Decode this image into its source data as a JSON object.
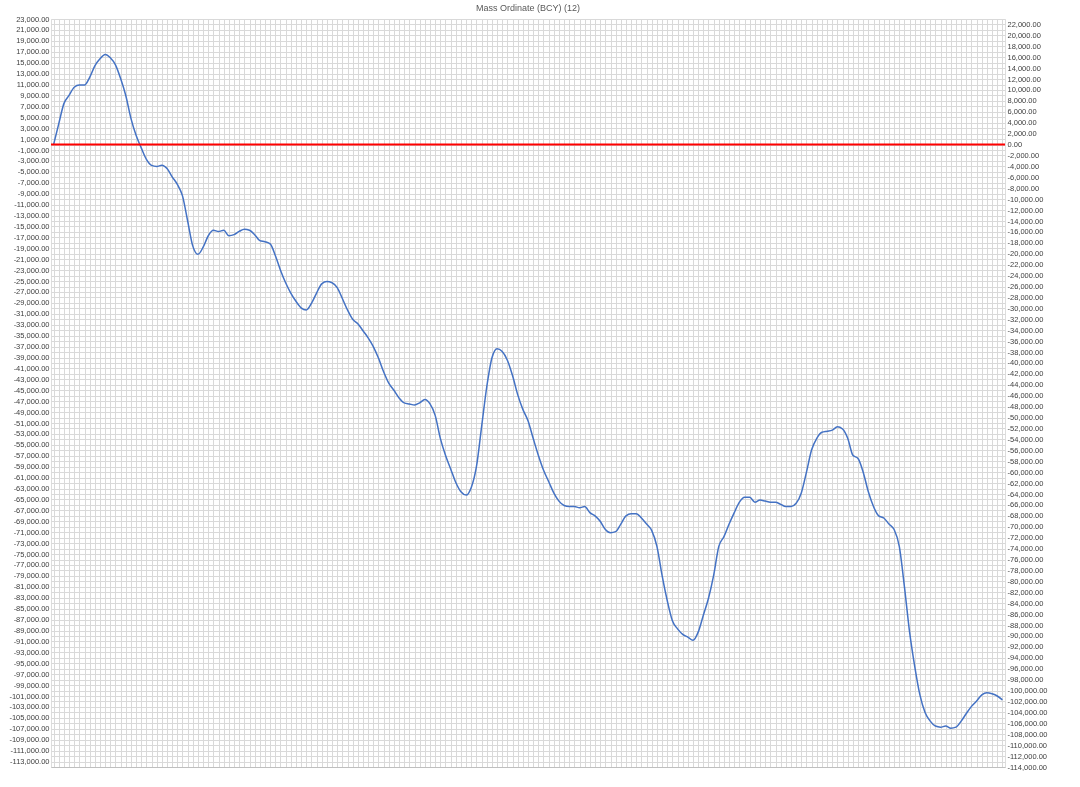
{
  "chart_data": {
    "type": "line",
    "title": "Mass Ordinate (BCY)  (12)",
    "categories": [
      null,
      null,
      null,
      null,
      null,
      null,
      null,
      null,
      null,
      null,
      null,
      null,
      null,
      null,
      null,
      null,
      null,
      null,
      null,
      null,
      null,
      null,
      null,
      null,
      null,
      null,
      null,
      null,
      null,
      null,
      null,
      null,
      null,
      null,
      null,
      null,
      null,
      null,
      null,
      null,
      null,
      null,
      null,
      null,
      null,
      null,
      null,
      null,
      null,
      null,
      null,
      null,
      null,
      null,
      null,
      null,
      null,
      null,
      null,
      null,
      null,
      null,
      null,
      null,
      null,
      null,
      null,
      null,
      null,
      null,
      null,
      null,
      null,
      null,
      null,
      null,
      null,
      null,
      null,
      null,
      null,
      null,
      null,
      null,
      null,
      null,
      null,
      null,
      null,
      null,
      null,
      null,
      null,
      null,
      null,
      null,
      null,
      null,
      null,
      null,
      null,
      null,
      null,
      null,
      null,
      null,
      null,
      null,
      null,
      null,
      null,
      null,
      null,
      null,
      null,
      null,
      null,
      null,
      null,
      null,
      null,
      null,
      null,
      null,
      null,
      null,
      null,
      null,
      null,
      null,
      null,
      null,
      null,
      null,
      null,
      null,
      null,
      null,
      null,
      null,
      null,
      null,
      null,
      null,
      null,
      null,
      null,
      null,
      null,
      null,
      null,
      null,
      null,
      null,
      null,
      null,
      null,
      null,
      null,
      null,
      null,
      null,
      null,
      null,
      null,
      null,
      null,
      null,
      null,
      null,
      null,
      null,
      null,
      null,
      null,
      null,
      null,
      null,
      null,
      null,
      null,
      null,
      null,
      null,
      null
    ],
    "series": [
      {
        "color": "#4472c4",
        "values": [
          0,
          3800,
          7500,
          9000,
          10500,
          10900,
          10900,
          12300,
          14400,
          15700,
          16500,
          15900,
          14600,
          12100,
          9000,
          4800,
          1700,
          -600,
          -2700,
          -3800,
          -4000,
          -3800,
          -4400,
          -5900,
          -7300,
          -9400,
          -14000,
          -18600,
          -20100,
          -18800,
          -16700,
          -15700,
          -15900,
          -15700,
          -16700,
          -16500,
          -15900,
          -15500,
          -15700,
          -16500,
          -17600,
          -17800,
          -18200,
          -20300,
          -23000,
          -25300,
          -27200,
          -28700,
          -29900,
          -30300,
          -29100,
          -27200,
          -25500,
          -25100,
          -25300,
          -26200,
          -28200,
          -30300,
          -32000,
          -32800,
          -34100,
          -35400,
          -37000,
          -39100,
          -41600,
          -43700,
          -45000,
          -46400,
          -47300,
          -47500,
          -47700,
          -47300,
          -46700,
          -47500,
          -49600,
          -53800,
          -56900,
          -59400,
          -61900,
          -63600,
          -64200,
          -62800,
          -59000,
          -51700,
          -44400,
          -39100,
          -37400,
          -37900,
          -39500,
          -42300,
          -45800,
          -48500,
          -50600,
          -53800,
          -56900,
          -59600,
          -61700,
          -63800,
          -65300,
          -66100,
          -66300,
          -66300,
          -66500,
          -66300,
          -67400,
          -68000,
          -69000,
          -70500,
          -71100,
          -70900,
          -69500,
          -68000,
          -67600,
          -67600,
          -68400,
          -69500,
          -70700,
          -73600,
          -78900,
          -83500,
          -87200,
          -88700,
          -89700,
          -90200,
          -90800,
          -89300,
          -86200,
          -83100,
          -78900,
          -73600,
          -71800,
          -69500,
          -67400,
          -65500,
          -64600,
          -64600,
          -65500,
          -65100,
          -65300,
          -65500,
          -65500,
          -65900,
          -66300,
          -66300,
          -65700,
          -63800,
          -60000,
          -55900,
          -53800,
          -52700,
          -52500,
          -52300,
          -51700,
          -52100,
          -53800,
          -56900,
          -57500,
          -60000,
          -63600,
          -66300,
          -68000,
          -68400,
          -69500,
          -70500,
          -73600,
          -81000,
          -89300,
          -95600,
          -100800,
          -104000,
          -105600,
          -106500,
          -106700,
          -106500,
          -106900,
          -106700,
          -105600,
          -104200,
          -102900,
          -101900,
          -100800,
          -100400,
          -100600,
          -101000,
          -101700
        ]
      }
    ],
    "ylim": [
      -114000,
      23000
    ],
    "yticks": [
      {
        "value": 23000,
        "label": "23,000.00"
      },
      {
        "value": 21000,
        "label": "21,000.00"
      },
      {
        "value": 19000,
        "label": "19,000.00"
      },
      {
        "value": 17000,
        "label": "17,000.00"
      },
      {
        "value": 15000,
        "label": "15,000.00"
      },
      {
        "value": 13000,
        "label": "13,000.00"
      },
      {
        "value": 11000,
        "label": "11,000.00"
      },
      {
        "value": 9000,
        "label": "9,000.00"
      },
      {
        "value": 7000,
        "label": "7,000.00"
      },
      {
        "value": 5000,
        "label": "5,000.00"
      },
      {
        "value": 3000,
        "label": "3,000.00"
      },
      {
        "value": 1000,
        "label": "1,000.00"
      },
      {
        "value": -1000,
        "label": "-1,000.00"
      },
      {
        "value": -3000,
        "label": "-3,000.00"
      },
      {
        "value": -5000,
        "label": "-5,000.00"
      },
      {
        "value": -7000,
        "label": "-7,000.00"
      },
      {
        "value": -9000,
        "label": "-9,000.00"
      },
      {
        "value": -11000,
        "label": "-11,000.00"
      },
      {
        "value": -13000,
        "label": "-13,000.00"
      },
      {
        "value": -15000,
        "label": "-15,000.00"
      },
      {
        "value": -17000,
        "label": "-17,000.00"
      },
      {
        "value": -19000,
        "label": "-19,000.00"
      },
      {
        "value": -21000,
        "label": "-21,000.00"
      },
      {
        "value": -23000,
        "label": "-23,000.00"
      },
      {
        "value": -25000,
        "label": "-25,000.00"
      },
      {
        "value": -27000,
        "label": "-27,000.00"
      },
      {
        "value": -29000,
        "label": "-29,000.00"
      },
      {
        "value": -31000,
        "label": "-31,000.00"
      },
      {
        "value": -33000,
        "label": "-33,000.00"
      },
      {
        "value": -35000,
        "label": "-35,000.00"
      },
      {
        "value": -37000,
        "label": "-37,000.00"
      },
      {
        "value": -39000,
        "label": "-39,000.00"
      },
      {
        "value": -41000,
        "label": "-41,000.00"
      },
      {
        "value": -43000,
        "label": "-43,000.00"
      },
      {
        "value": -45000,
        "label": "-45,000.00"
      },
      {
        "value": -47000,
        "label": "-47,000.00"
      },
      {
        "value": -49000,
        "label": "-49,000.00"
      },
      {
        "value": -51000,
        "label": "-51,000.00"
      },
      {
        "value": -53000,
        "label": "-53,000.00"
      },
      {
        "value": -55000,
        "label": "-55,000.00"
      },
      {
        "value": -57000,
        "label": "-57,000.00"
      },
      {
        "value": -59000,
        "label": "-59,000.00"
      },
      {
        "value": -61000,
        "label": "-61,000.00"
      },
      {
        "value": -63000,
        "label": "-63,000.00"
      },
      {
        "value": -65000,
        "label": "-65,000.00"
      },
      {
        "value": -67000,
        "label": "-67,000.00"
      },
      {
        "value": -69000,
        "label": "-69,000.00"
      },
      {
        "value": -71000,
        "label": "-71,000.00"
      },
      {
        "value": -73000,
        "label": "-73,000.00"
      },
      {
        "value": -75000,
        "label": "-75,000.00"
      },
      {
        "value": -77000,
        "label": "-77,000.00"
      },
      {
        "value": -79000,
        "label": "-79,000.00"
      },
      {
        "value": -81000,
        "label": "-81,000.00"
      },
      {
        "value": -83000,
        "label": "-83,000.00"
      },
      {
        "value": -85000,
        "label": "-85,000.00"
      },
      {
        "value": -87000,
        "label": "-87,000.00"
      },
      {
        "value": -89000,
        "label": "-89,000.00"
      },
      {
        "value": -91000,
        "label": "-91,000.00"
      },
      {
        "value": -93000,
        "label": "-93,000.00"
      },
      {
        "value": -95000,
        "label": "-95,000.00"
      },
      {
        "value": -97000,
        "label": "-97,000.00"
      },
      {
        "value": -99000,
        "label": "-99,000.00"
      },
      {
        "value": -101000,
        "label": "-101,000.00"
      },
      {
        "value": -103000,
        "label": "-103,000.00"
      },
      {
        "value": -105000,
        "label": "-105,000.00"
      },
      {
        "value": -107000,
        "label": "-107,000.00"
      },
      {
        "value": -109000,
        "label": "-109,000.00"
      },
      {
        "value": -111000,
        "label": "-111,000.00"
      },
      {
        "value": -113000,
        "label": "-113,000.00"
      }
    ],
    "y2lim": [
      -114000,
      23000
    ],
    "y2ticks": [
      {
        "value": 22000,
        "label": "22,000.00"
      },
      {
        "value": 20000,
        "label": "20,000.00"
      },
      {
        "value": 18000,
        "label": "18,000.00"
      },
      {
        "value": 16000,
        "label": "16,000.00"
      },
      {
        "value": 14000,
        "label": "14,000.00"
      },
      {
        "value": 12000,
        "label": "12,000.00"
      },
      {
        "value": 10000,
        "label": "10,000.00"
      },
      {
        "value": 8000,
        "label": "8,000.00"
      },
      {
        "value": 6000,
        "label": "6,000.00"
      },
      {
        "value": 4000,
        "label": "4,000.00"
      },
      {
        "value": 2000,
        "label": "2,000.00"
      },
      {
        "value": 0,
        "label": "0.00"
      },
      {
        "value": -2000,
        "label": "-2,000.00"
      },
      {
        "value": -4000,
        "label": "-4,000.00"
      },
      {
        "value": -6000,
        "label": "-6,000.00"
      },
      {
        "value": -8000,
        "label": "-8,000.00"
      },
      {
        "value": -10000,
        "label": "-10,000.00"
      },
      {
        "value": -12000,
        "label": "-12,000.00"
      },
      {
        "value": -14000,
        "label": "-14,000.00"
      },
      {
        "value": -16000,
        "label": "-16,000.00"
      },
      {
        "value": -18000,
        "label": "-18,000.00"
      },
      {
        "value": -20000,
        "label": "-20,000.00"
      },
      {
        "value": -22000,
        "label": "-22,000.00"
      },
      {
        "value": -24000,
        "label": "-24,000.00"
      },
      {
        "value": -26000,
        "label": "-26,000.00"
      },
      {
        "value": -28000,
        "label": "-28,000.00"
      },
      {
        "value": -30000,
        "label": "-30,000.00"
      },
      {
        "value": -32000,
        "label": "-32,000.00"
      },
      {
        "value": -34000,
        "label": "-34,000.00"
      },
      {
        "value": -36000,
        "label": "-36,000.00"
      },
      {
        "value": -38000,
        "label": "-38,000.00"
      },
      {
        "value": -40000,
        "label": "-40,000.00"
      },
      {
        "value": -42000,
        "label": "-42,000.00"
      },
      {
        "value": -44000,
        "label": "-44,000.00"
      },
      {
        "value": -46000,
        "label": "-46,000.00"
      },
      {
        "value": -48000,
        "label": "-48,000.00"
      },
      {
        "value": -50000,
        "label": "-50,000.00"
      },
      {
        "value": -52000,
        "label": "-52,000.00"
      },
      {
        "value": -54000,
        "label": "-54,000.00"
      },
      {
        "value": -56000,
        "label": "-56,000.00"
      },
      {
        "value": -58000,
        "label": "-58,000.00"
      },
      {
        "value": -60000,
        "label": "-60,000.00"
      },
      {
        "value": -62000,
        "label": "-62,000.00"
      },
      {
        "value": -64000,
        "label": "-64,000.00"
      },
      {
        "value": -66000,
        "label": "-66,000.00"
      },
      {
        "value": -68000,
        "label": "-68,000.00"
      },
      {
        "value": -70000,
        "label": "-70,000.00"
      },
      {
        "value": -72000,
        "label": "-72,000.00"
      },
      {
        "value": -74000,
        "label": "-74,000.00"
      },
      {
        "value": -76000,
        "label": "-76,000.00"
      },
      {
        "value": -78000,
        "label": "-78,000.00"
      },
      {
        "value": -80000,
        "label": "-80,000.00"
      },
      {
        "value": -82000,
        "label": "-82,000.00"
      },
      {
        "value": -84000,
        "label": "-84,000.00"
      },
      {
        "value": -86000,
        "label": "-86,000.00"
      },
      {
        "value": -88000,
        "label": "-88,000.00"
      },
      {
        "value": -90000,
        "label": "-90,000.00"
      },
      {
        "value": -92000,
        "label": "-92,000.00"
      },
      {
        "value": -94000,
        "label": "-94,000.00"
      },
      {
        "value": -96000,
        "label": "-96,000.00"
      },
      {
        "value": -98000,
        "label": "-98,000.00"
      },
      {
        "value": -100000,
        "label": "-100,000.00"
      },
      {
        "value": -102000,
        "label": "-102,000.00"
      },
      {
        "value": -104000,
        "label": "-104,000.00"
      },
      {
        "value": -106000,
        "label": "-106,000.00"
      },
      {
        "value": -108000,
        "label": "-108,000.00"
      },
      {
        "value": -110000,
        "label": "-110,000.00"
      },
      {
        "value": -112000,
        "label": "-112,000.00"
      },
      {
        "value": -114000,
        "label": "-114,000.00"
      }
    ],
    "ref_lines": [
      {
        "axis": "y",
        "value": 0,
        "color": "#ff0000"
      }
    ],
    "grid": true,
    "tick_labels": "y",
    "line_style": "solid"
  }
}
